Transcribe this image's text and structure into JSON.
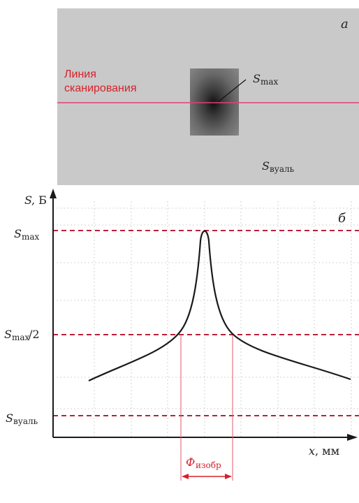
{
  "panel_a": {
    "letter": "а",
    "scan_line_label_line1": "Линия",
    "scan_line_label_line2": "сканирования",
    "smax_main": "S",
    "smax_sub": "max",
    "sveil_main": "S",
    "sveil_sub": "вуаль"
  },
  "panel_b": {
    "letter": "б",
    "y_axis_main": "S",
    "y_axis_unit": ", Б",
    "x_axis_main": "x",
    "x_axis_unit": ", мм",
    "level_smax_main": "S",
    "level_smax_sub": "max",
    "level_half_main": "S",
    "level_half_sub": "max",
    "level_half_suffix": "/2",
    "level_veil_main": "S",
    "level_veil_sub": "вуаль",
    "width_main": "Ф",
    "width_sub": "изобр"
  },
  "colors": {
    "scan_line": "#e0407a",
    "label_red": "#d8202a",
    "dashed": "#b8203a",
    "curve": "#1a1a1a",
    "panel_bg": "#c9c9c9"
  }
}
